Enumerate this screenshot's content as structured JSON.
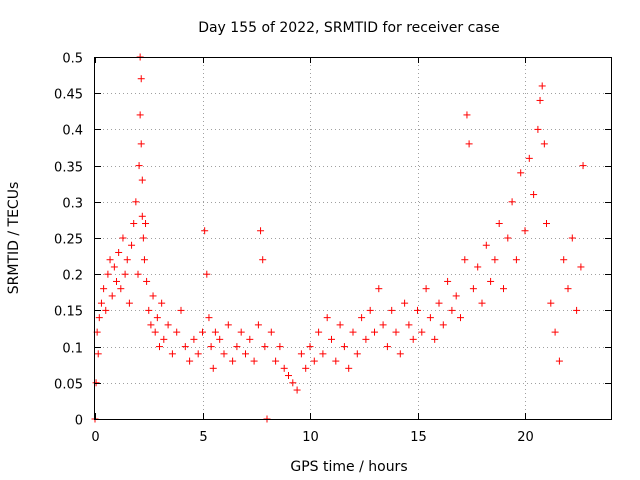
{
  "chart_data": {
    "type": "scatter",
    "title": "Day 155 of 2022, SRMTID for receiver case",
    "xlabel": "GPS time / hours",
    "ylabel": "SRMTID / TECUs",
    "xlim": [
      0,
      24
    ],
    "ylim": [
      0,
      0.5
    ],
    "xticks": [
      0,
      5,
      10,
      15,
      20
    ],
    "xtick_labels": [
      "0",
      "5",
      "10",
      "15",
      "20"
    ],
    "yticks": [
      0,
      0.05,
      0.1,
      0.15,
      0.2,
      0.25,
      0.3,
      0.35,
      0.4,
      0.45,
      0.5
    ],
    "ytick_labels": [
      "0",
      "0.05",
      "0.1",
      "0.15",
      "0.2",
      "0.25",
      "0.3",
      "0.35",
      "0.4",
      "0.45",
      "0.5"
    ],
    "grid": true,
    "marker": "plus",
    "color": "#ff0000",
    "series": [
      {
        "name": "SRMTID",
        "x": [
          0.0,
          0.05,
          0.1,
          0.15,
          0.2,
          0.3,
          0.4,
          0.5,
          0.6,
          0.7,
          0.8,
          0.9,
          1.0,
          1.1,
          1.2,
          1.3,
          1.4,
          1.5,
          1.6,
          1.7,
          1.8,
          1.9,
          2.0,
          2.05,
          2.1,
          2.1,
          2.15,
          2.15,
          2.2,
          2.2,
          2.25,
          2.3,
          2.35,
          2.4,
          2.5,
          2.6,
          2.7,
          2.8,
          2.9,
          3.0,
          3.1,
          3.2,
          3.4,
          3.6,
          3.8,
          4.0,
          4.2,
          4.4,
          4.6,
          4.8,
          5.0,
          5.1,
          5.2,
          5.3,
          5.4,
          5.5,
          5.6,
          5.8,
          6.0,
          6.2,
          6.4,
          6.6,
          6.8,
          7.0,
          7.2,
          7.4,
          7.6,
          7.7,
          7.8,
          7.9,
          8.0,
          8.2,
          8.4,
          8.6,
          8.8,
          9.0,
          9.2,
          9.4,
          9.6,
          9.8,
          10.0,
          10.2,
          10.4,
          10.6,
          10.8,
          11.0,
          11.2,
          11.4,
          11.6,
          11.8,
          12.0,
          12.2,
          12.4,
          12.6,
          12.8,
          13.0,
          13.2,
          13.4,
          13.6,
          13.8,
          14.0,
          14.2,
          14.4,
          14.6,
          14.8,
          15.0,
          15.2,
          15.4,
          15.6,
          15.8,
          16.0,
          16.2,
          16.4,
          16.6,
          16.8,
          17.0,
          17.2,
          17.3,
          17.4,
          17.6,
          17.8,
          18.0,
          18.2,
          18.4,
          18.6,
          18.8,
          19.0,
          19.2,
          19.4,
          19.6,
          19.8,
          20.0,
          20.2,
          20.4,
          20.6,
          20.7,
          20.8,
          20.9,
          21.0,
          21.2,
          21.4,
          21.6,
          21.8,
          22.0,
          22.2,
          22.4,
          22.6,
          22.7
        ],
        "y": [
          0.0,
          0.05,
          0.12,
          0.09,
          0.14,
          0.16,
          0.18,
          0.15,
          0.2,
          0.22,
          0.17,
          0.21,
          0.19,
          0.23,
          0.18,
          0.25,
          0.2,
          0.22,
          0.16,
          0.24,
          0.27,
          0.3,
          0.2,
          0.35,
          0.42,
          0.5,
          0.47,
          0.38,
          0.33,
          0.28,
          0.25,
          0.22,
          0.27,
          0.19,
          0.15,
          0.13,
          0.17,
          0.12,
          0.14,
          0.1,
          0.16,
          0.11,
          0.13,
          0.09,
          0.12,
          0.15,
          0.1,
          0.08,
          0.11,
          0.09,
          0.12,
          0.26,
          0.2,
          0.14,
          0.1,
          0.07,
          0.12,
          0.11,
          0.09,
          0.13,
          0.08,
          0.1,
          0.12,
          0.09,
          0.11,
          0.08,
          0.13,
          0.26,
          0.22,
          0.1,
          0.0,
          0.12,
          0.08,
          0.1,
          0.07,
          0.06,
          0.05,
          0.04,
          0.09,
          0.07,
          0.1,
          0.08,
          0.12,
          0.09,
          0.14,
          0.11,
          0.08,
          0.13,
          0.1,
          0.07,
          0.12,
          0.09,
          0.14,
          0.11,
          0.15,
          0.12,
          0.18,
          0.13,
          0.1,
          0.15,
          0.12,
          0.09,
          0.16,
          0.13,
          0.11,
          0.15,
          0.12,
          0.18,
          0.14,
          0.11,
          0.16,
          0.13,
          0.19,
          0.15,
          0.17,
          0.14,
          0.22,
          0.42,
          0.38,
          0.18,
          0.21,
          0.16,
          0.24,
          0.19,
          0.22,
          0.27,
          0.18,
          0.25,
          0.3,
          0.22,
          0.34,
          0.26,
          0.36,
          0.31,
          0.4,
          0.44,
          0.46,
          0.38,
          0.27,
          0.16,
          0.12,
          0.08,
          0.22,
          0.18,
          0.25,
          0.15,
          0.21,
          0.35
        ]
      }
    ]
  }
}
